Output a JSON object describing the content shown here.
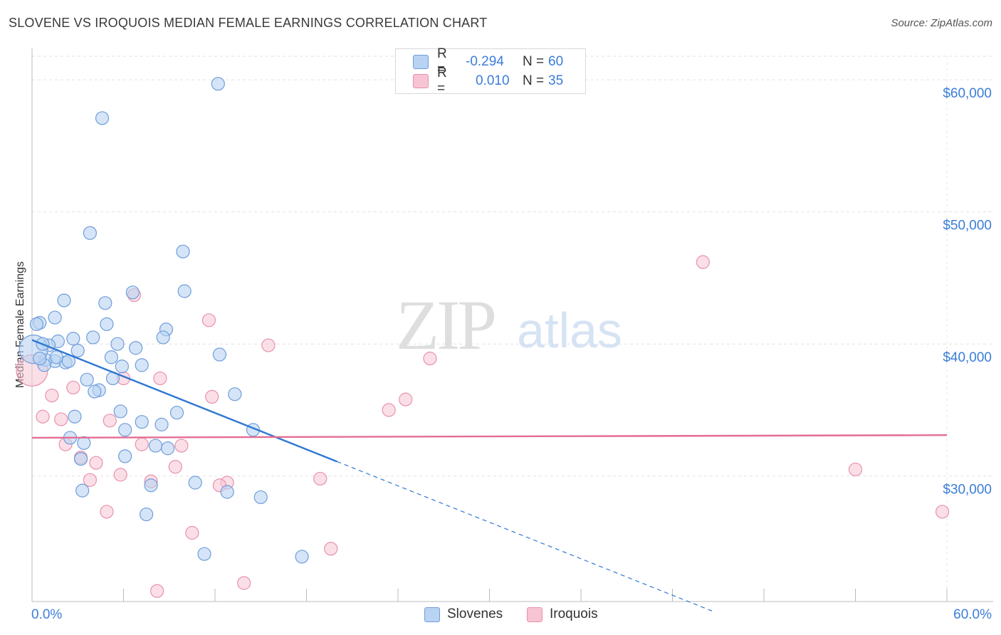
{
  "header": {
    "title": "SLOVENE VS IROQUOIS MEDIAN FEMALE EARNINGS CORRELATION CHART",
    "source": "Source: ZipAtlas.com"
  },
  "watermark": {
    "zip": "ZIP",
    "atlas": "atlas"
  },
  "legend": {
    "series1": {
      "r_label": "R =",
      "r_value": "-0.294",
      "n_label": "N =",
      "n_value": "60"
    },
    "series2": {
      "r_label": "R =",
      "r_value": "0.010",
      "n_label": "N =",
      "n_value": "35"
    }
  },
  "bottom_legend": {
    "series1": "Slovenes",
    "series2": "Iroquois"
  },
  "colors": {
    "blue_fill": "#b9d3f2",
    "blue_stroke": "#6f9ddb",
    "blue_line": "#2f78d2",
    "pink_fill": "#f7c4d4",
    "pink_stroke": "#e891ad",
    "pink_line": "#e46d93",
    "tick_text": "#3b7dd8"
  },
  "chart_data": {
    "type": "scatter",
    "title": "SLOVENE VS IROQUOIS MEDIAN FEMALE EARNINGS CORRELATION CHART",
    "xlabel": "",
    "ylabel": "Median Female Earnings",
    "xlim": [
      0,
      60
    ],
    "ylim": [
      20500,
      62000
    ],
    "x_tick_labels": [
      "0.0%",
      "60.0%"
    ],
    "y_ticks": [
      30000,
      40000,
      50000,
      60000
    ],
    "y_tick_labels": [
      "$30,000",
      "$40,000",
      "$50,000",
      "$60,000"
    ],
    "grid": true,
    "series": [
      {
        "name": "Slovenes",
        "r": -0.294,
        "n": 60,
        "trend": {
          "x0": 0,
          "y0": 40300,
          "x1": 20,
          "y1": 31100,
          "dashed_to_x": 44.8
        },
        "points": [
          [
            12.2,
            59700
          ],
          [
            4.6,
            57100
          ],
          [
            3.8,
            48400
          ],
          [
            9.9,
            47000
          ],
          [
            6.6,
            43900
          ],
          [
            10.0,
            44000
          ],
          [
            2.1,
            43300
          ],
          [
            4.8,
            43100
          ],
          [
            1.5,
            42000
          ],
          [
            0.5,
            41600
          ],
          [
            0.3,
            41500
          ],
          [
            4.9,
            41500
          ],
          [
            8.8,
            41100
          ],
          [
            2.7,
            40400
          ],
          [
            1.7,
            40200
          ],
          [
            8.6,
            40500
          ],
          [
            4.0,
            40500
          ],
          [
            5.6,
            40000
          ],
          [
            1.1,
            39900
          ],
          [
            6.8,
            39700
          ],
          [
            3.0,
            39500
          ],
          [
            12.3,
            39200
          ],
          [
            5.2,
            39000
          ],
          [
            1.5,
            38700
          ],
          [
            0.9,
            38800
          ],
          [
            2.2,
            38600
          ],
          [
            0.8,
            38400
          ],
          [
            7.2,
            38400
          ],
          [
            5.9,
            38300
          ],
          [
            5.3,
            37400
          ],
          [
            3.6,
            37300
          ],
          [
            4.4,
            36500
          ],
          [
            4.1,
            36400
          ],
          [
            13.3,
            36200
          ],
          [
            5.8,
            34900
          ],
          [
            9.5,
            34800
          ],
          [
            2.8,
            34500
          ],
          [
            7.2,
            34100
          ],
          [
            8.5,
            33900
          ],
          [
            6.1,
            33500
          ],
          [
            14.5,
            33500
          ],
          [
            2.5,
            32900
          ],
          [
            3.4,
            32500
          ],
          [
            8.1,
            32300
          ],
          [
            8.9,
            32100
          ],
          [
            3.2,
            31300
          ],
          [
            6.1,
            31500
          ],
          [
            7.8,
            29300
          ],
          [
            10.7,
            29500
          ],
          [
            3.3,
            28900
          ],
          [
            12.8,
            28800
          ],
          [
            15.0,
            28400
          ],
          [
            7.5,
            27100
          ],
          [
            11.3,
            24100
          ],
          [
            17.7,
            23900
          ],
          [
            0.1,
            39600
          ],
          [
            0.5,
            38900
          ],
          [
            2.4,
            38700
          ],
          [
            1.6,
            39000
          ],
          [
            0.7,
            40000
          ]
        ]
      },
      {
        "name": "Iroquois",
        "r": 0.01,
        "n": 35,
        "trend": {
          "x0": 0,
          "y0": 32900,
          "x1": 60,
          "y1": 33100
        },
        "points": [
          [
            0.0,
            38000
          ],
          [
            44.0,
            46200
          ],
          [
            6.7,
            43700
          ],
          [
            11.6,
            41800
          ],
          [
            15.5,
            39900
          ],
          [
            26.1,
            38900
          ],
          [
            8.4,
            37400
          ],
          [
            6.0,
            37400
          ],
          [
            2.7,
            36700
          ],
          [
            1.3,
            36100
          ],
          [
            11.8,
            36000
          ],
          [
            24.5,
            35800
          ],
          [
            23.4,
            35000
          ],
          [
            0.7,
            34500
          ],
          [
            1.9,
            34300
          ],
          [
            5.1,
            34200
          ],
          [
            7.2,
            32400
          ],
          [
            9.8,
            32300
          ],
          [
            2.2,
            32400
          ],
          [
            3.2,
            31400
          ],
          [
            4.2,
            31000
          ],
          [
            9.4,
            30700
          ],
          [
            5.8,
            30100
          ],
          [
            18.9,
            29800
          ],
          [
            3.8,
            29700
          ],
          [
            7.8,
            29600
          ],
          [
            12.8,
            29500
          ],
          [
            12.3,
            29300
          ],
          [
            54.0,
            30500
          ],
          [
            59.7,
            27300
          ],
          [
            4.9,
            27300
          ],
          [
            10.5,
            25700
          ],
          [
            19.6,
            24500
          ],
          [
            13.9,
            21900
          ],
          [
            8.2,
            21300
          ]
        ]
      }
    ]
  }
}
